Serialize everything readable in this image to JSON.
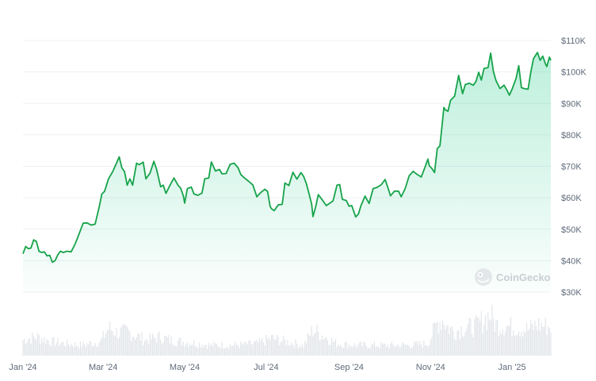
{
  "watermark": {
    "text": "CoinGecko",
    "icon": "gecko-logo-icon"
  },
  "colors": {
    "line": "#16a34a",
    "fill_top": "#16c784",
    "grid": "#eef0f3",
    "volume": "#e2e5e9",
    "axis_text": "#5f6b7a"
  },
  "chart_data": {
    "type": "area",
    "series": [
      {
        "values": [
          [
            "2024-01-01",
            42.2
          ],
          [
            "2024-01-03",
            44.5
          ],
          [
            "2024-01-05",
            43.8
          ],
          [
            "2024-01-07",
            44.0
          ],
          [
            "2024-01-09",
            46.6
          ],
          [
            "2024-01-11",
            46.1
          ],
          [
            "2024-01-13",
            43.0
          ],
          [
            "2024-01-15",
            42.6
          ],
          [
            "2024-01-17",
            42.8
          ],
          [
            "2024-01-19",
            41.5
          ],
          [
            "2024-01-21",
            41.7
          ],
          [
            "2024-01-23",
            39.5
          ],
          [
            "2024-01-25",
            40.0
          ],
          [
            "2024-01-27",
            41.8
          ],
          [
            "2024-01-29",
            43.0
          ],
          [
            "2024-01-31",
            42.6
          ],
          [
            "2024-02-03",
            43.0
          ],
          [
            "2024-02-06",
            42.8
          ],
          [
            "2024-02-09",
            45.3
          ],
          [
            "2024-02-12",
            48.5
          ],
          [
            "2024-02-15",
            51.9
          ],
          [
            "2024-02-18",
            52.0
          ],
          [
            "2024-02-21",
            51.3
          ],
          [
            "2024-02-24",
            51.6
          ],
          [
            "2024-02-27",
            57.0
          ],
          [
            "2024-02-29",
            61.2
          ],
          [
            "2024-03-02",
            62.0
          ],
          [
            "2024-03-05",
            66.0
          ],
          [
            "2024-03-08",
            68.2
          ],
          [
            "2024-03-11",
            71.0
          ],
          [
            "2024-03-13",
            73.0
          ],
          [
            "2024-03-15",
            69.5
          ],
          [
            "2024-03-17",
            68.3
          ],
          [
            "2024-03-19",
            64.0
          ],
          [
            "2024-03-21",
            66.0
          ],
          [
            "2024-03-23",
            64.0
          ],
          [
            "2024-03-26",
            71.0
          ],
          [
            "2024-03-28",
            70.5
          ],
          [
            "2024-03-31",
            71.3
          ],
          [
            "2024-04-02",
            66.0
          ],
          [
            "2024-04-05",
            67.8
          ],
          [
            "2024-04-08",
            71.6
          ],
          [
            "2024-04-10",
            69.0
          ],
          [
            "2024-04-13",
            63.5
          ],
          [
            "2024-04-15",
            64.0
          ],
          [
            "2024-04-17",
            61.4
          ],
          [
            "2024-04-20",
            64.0
          ],
          [
            "2024-04-23",
            66.3
          ],
          [
            "2024-04-26",
            64.0
          ],
          [
            "2024-04-28",
            63.0
          ],
          [
            "2024-04-30",
            60.6
          ],
          [
            "2024-05-01",
            58.3
          ],
          [
            "2024-05-03",
            62.9
          ],
          [
            "2024-05-06",
            63.4
          ],
          [
            "2024-05-08",
            61.2
          ],
          [
            "2024-05-11",
            60.8
          ],
          [
            "2024-05-14",
            61.5
          ],
          [
            "2024-05-16",
            66.0
          ],
          [
            "2024-05-19",
            66.3
          ],
          [
            "2024-05-21",
            71.4
          ],
          [
            "2024-05-24",
            68.5
          ],
          [
            "2024-05-27",
            69.0
          ],
          [
            "2024-05-29",
            67.6
          ],
          [
            "2024-06-01",
            67.7
          ],
          [
            "2024-06-04",
            70.6
          ],
          [
            "2024-06-07",
            71.0
          ],
          [
            "2024-06-10",
            69.5
          ],
          [
            "2024-06-12",
            67.4
          ],
          [
            "2024-06-15",
            66.2
          ],
          [
            "2024-06-18",
            65.2
          ],
          [
            "2024-06-21",
            64.1
          ],
          [
            "2024-06-24",
            60.3
          ],
          [
            "2024-06-27",
            61.7
          ],
          [
            "2024-06-30",
            62.7
          ],
          [
            "2024-07-02",
            62.0
          ],
          [
            "2024-07-04",
            57.2
          ],
          [
            "2024-07-05",
            56.5
          ],
          [
            "2024-07-07",
            55.9
          ],
          [
            "2024-07-10",
            57.7
          ],
          [
            "2024-07-13",
            57.9
          ],
          [
            "2024-07-15",
            64.7
          ],
          [
            "2024-07-18",
            63.9
          ],
          [
            "2024-07-21",
            68.1
          ],
          [
            "2024-07-24",
            65.9
          ],
          [
            "2024-07-27",
            68.0
          ],
          [
            "2024-07-29",
            66.8
          ],
          [
            "2024-07-31",
            64.6
          ],
          [
            "2024-08-02",
            61.4
          ],
          [
            "2024-08-04",
            58.0
          ],
          [
            "2024-08-05",
            54.0
          ],
          [
            "2024-08-07",
            57.1
          ],
          [
            "2024-08-09",
            61.0
          ],
          [
            "2024-08-12",
            59.3
          ],
          [
            "2024-08-15",
            57.5
          ],
          [
            "2024-08-18",
            58.4
          ],
          [
            "2024-08-20",
            59.0
          ],
          [
            "2024-08-23",
            64.0
          ],
          [
            "2024-08-25",
            64.2
          ],
          [
            "2024-08-27",
            59.5
          ],
          [
            "2024-08-30",
            59.1
          ],
          [
            "2024-09-01",
            57.3
          ],
          [
            "2024-09-03",
            57.5
          ],
          [
            "2024-09-06",
            53.9
          ],
          [
            "2024-09-08",
            54.8
          ],
          [
            "2024-09-10",
            57.6
          ],
          [
            "2024-09-13",
            60.5
          ],
          [
            "2024-09-16",
            58.2
          ],
          [
            "2024-09-19",
            62.9
          ],
          [
            "2024-09-22",
            63.3
          ],
          [
            "2024-09-25",
            64.1
          ],
          [
            "2024-09-28",
            65.8
          ],
          [
            "2024-09-30",
            63.3
          ],
          [
            "2024-10-02",
            60.6
          ],
          [
            "2024-10-05",
            62.1
          ],
          [
            "2024-10-08",
            62.1
          ],
          [
            "2024-10-10",
            60.3
          ],
          [
            "2024-10-13",
            62.9
          ],
          [
            "2024-10-16",
            67.0
          ],
          [
            "2024-10-19",
            68.4
          ],
          [
            "2024-10-22",
            67.4
          ],
          [
            "2024-10-25",
            66.6
          ],
          [
            "2024-10-28",
            69.9
          ],
          [
            "2024-10-30",
            72.3
          ],
          [
            "2024-10-31",
            70.2
          ],
          [
            "2024-11-02",
            69.3
          ],
          [
            "2024-11-04",
            68.0
          ],
          [
            "2024-11-06",
            75.6
          ],
          [
            "2024-11-08",
            76.5
          ],
          [
            "2024-11-11",
            88.7
          ],
          [
            "2024-11-12",
            88.0
          ],
          [
            "2024-11-14",
            87.5
          ],
          [
            "2024-11-16",
            91.0
          ],
          [
            "2024-11-19",
            92.3
          ],
          [
            "2024-11-22",
            98.9
          ],
          [
            "2024-11-25",
            93.1
          ],
          [
            "2024-11-27",
            96.0
          ],
          [
            "2024-11-30",
            96.4
          ],
          [
            "2024-12-03",
            95.8
          ],
          [
            "2024-12-05",
            97.0
          ],
          [
            "2024-12-07",
            99.9
          ],
          [
            "2024-12-09",
            97.4
          ],
          [
            "2024-12-11",
            101.1
          ],
          [
            "2024-12-14",
            101.4
          ],
          [
            "2024-12-16",
            106.0
          ],
          [
            "2024-12-18",
            100.2
          ],
          [
            "2024-12-20",
            97.2
          ],
          [
            "2024-12-23",
            94.7
          ],
          [
            "2024-12-26",
            95.8
          ],
          [
            "2024-12-28",
            94.3
          ],
          [
            "2024-12-30",
            92.6
          ],
          [
            "2025-01-01",
            94.5
          ],
          [
            "2025-01-04",
            98.0
          ],
          [
            "2025-01-06",
            102.0
          ],
          [
            "2025-01-08",
            95.0
          ],
          [
            "2025-01-10",
            94.7
          ],
          [
            "2025-01-13",
            94.5
          ],
          [
            "2025-01-15",
            99.9
          ],
          [
            "2025-01-17",
            104.2
          ],
          [
            "2025-01-20",
            106.2
          ],
          [
            "2025-01-22",
            103.7
          ],
          [
            "2025-01-24",
            105.0
          ],
          [
            "2025-01-26",
            102.5
          ],
          [
            "2025-01-27",
            101.7
          ],
          [
            "2025-01-29",
            104.7
          ],
          [
            "2025-01-30",
            103.7
          ]
        ]
      }
    ],
    "volume": {
      "note_type": "relative bars, no axis",
      "values": [
        [
          "2024-01-01",
          0.18
        ],
        [
          "2024-01-11",
          0.22
        ],
        [
          "2024-01-23",
          0.16
        ],
        [
          "2024-02-12",
          0.12
        ],
        [
          "2024-02-28",
          0.16
        ],
        [
          "2024-03-05",
          0.32
        ],
        [
          "2024-03-13",
          0.26
        ],
        [
          "2024-03-19",
          0.28
        ],
        [
          "2024-04-02",
          0.18
        ],
        [
          "2024-04-13",
          0.22
        ],
        [
          "2024-04-20",
          0.18
        ],
        [
          "2024-05-01",
          0.16
        ],
        [
          "2024-05-21",
          0.12
        ],
        [
          "2024-06-07",
          0.12
        ],
        [
          "2024-06-24",
          0.14
        ],
        [
          "2024-07-05",
          0.2
        ],
        [
          "2024-07-29",
          0.12
        ],
        [
          "2024-08-05",
          0.3
        ],
        [
          "2024-08-23",
          0.14
        ],
        [
          "2024-09-06",
          0.12
        ],
        [
          "2024-09-19",
          0.12
        ],
        [
          "2024-10-16",
          0.12
        ],
        [
          "2024-10-30",
          0.14
        ],
        [
          "2024-11-06",
          0.38
        ],
        [
          "2024-11-11",
          0.42
        ],
        [
          "2024-11-13",
          0.34
        ],
        [
          "2024-11-19",
          0.28
        ],
        [
          "2024-11-22",
          0.3
        ],
        [
          "2024-11-26",
          0.32
        ],
        [
          "2024-12-05",
          0.34
        ],
        [
          "2024-12-16",
          0.48
        ],
        [
          "2024-12-18",
          0.4
        ],
        [
          "2024-12-20",
          0.36
        ],
        [
          "2025-01-07",
          0.32
        ],
        [
          "2025-01-13",
          0.3
        ],
        [
          "2025-01-20",
          0.36
        ],
        [
          "2025-01-27",
          0.34
        ]
      ]
    },
    "y_ticks": [
      "$30K",
      "$40K",
      "$50K",
      "$60K",
      "$70K",
      "$80K",
      "$90K",
      "$100K",
      "$110K"
    ],
    "y_tick_values": [
      30,
      40,
      50,
      60,
      70,
      80,
      90,
      100,
      110
    ],
    "x_ticks": [
      "Jan '24",
      "Mar '24",
      "May '24",
      "Jul '24",
      "Sep '24",
      "Nov '24",
      "Jan '25"
    ],
    "x_tick_dates": [
      "2024-01-01",
      "2024-03-01",
      "2024-05-01",
      "2024-07-01",
      "2024-09-01",
      "2024-11-01",
      "2025-01-01"
    ],
    "ylim": [
      30,
      110
    ],
    "x_range": [
      "2024-01-01",
      "2025-01-30"
    ],
    "y_unit": "USD thousands",
    "grid": true,
    "y_axis_side": "right"
  }
}
